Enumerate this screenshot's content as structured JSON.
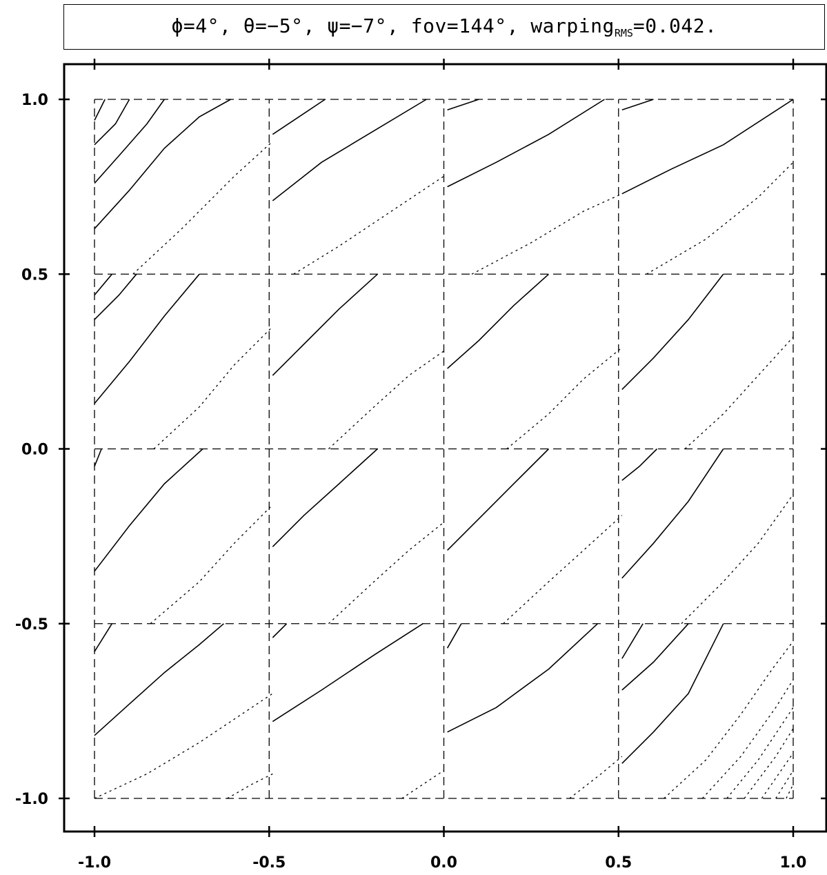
{
  "title": {
    "phi": "ϕ=4°,",
    "theta": "θ=−5°,",
    "psi": "ψ=−7°,",
    "fov": "fov=144°,",
    "warping_main": "warping",
    "warping_sub": "RMS",
    "warping_value": "=0.042."
  },
  "chart_data": {
    "type": "line",
    "title": "ϕ=4°, θ=−5°, ψ=−7°, fov=144°, warping_RMS=0.042.",
    "xlabel": "",
    "ylabel": "",
    "xlim": [
      -1.0,
      1.0
    ],
    "ylim": [
      -1.0,
      1.0
    ],
    "x_ticks": [
      "-1.0",
      "-0.5",
      "0.0",
      "0.5",
      "1.0"
    ],
    "y_ticks": [
      "1.0",
      "0.5",
      "0.0",
      "-0.5",
      "-1.0"
    ],
    "grid": true,
    "grid_style": "dashed",
    "grid_lines": [
      -1.0,
      -0.5,
      0.0,
      0.5,
      1.0
    ],
    "series": [
      {
        "style": "solid",
        "segments": [
          [
            [
              -1.0,
              0.94
            ],
            [
              -0.97,
              1.0
            ]
          ],
          [
            [
              -1.0,
              0.87
            ],
            [
              -0.94,
              0.93
            ],
            [
              -0.9,
              1.0
            ]
          ],
          [
            [
              -1.0,
              0.76
            ],
            [
              -0.92,
              0.85
            ],
            [
              -0.85,
              0.93
            ],
            [
              -0.8,
              1.0
            ]
          ],
          [
            [
              -1.0,
              0.63
            ],
            [
              -0.9,
              0.74
            ],
            [
              -0.8,
              0.86
            ],
            [
              -0.7,
              0.95
            ],
            [
              -0.61,
              1.0
            ]
          ],
          [
            [
              -0.49,
              0.9
            ],
            [
              -0.4,
              0.96
            ],
            [
              -0.34,
              1.0
            ]
          ],
          [
            [
              -0.49,
              0.71
            ],
            [
              -0.35,
              0.82
            ],
            [
              -0.2,
              0.91
            ],
            [
              -0.05,
              1.0
            ]
          ],
          [
            [
              0.01,
              0.97
            ],
            [
              0.1,
              1.0
            ]
          ],
          [
            [
              0.01,
              0.75
            ],
            [
              0.15,
              0.82
            ],
            [
              0.3,
              0.9
            ],
            [
              0.46,
              1.0
            ]
          ],
          [
            [
              0.51,
              0.97
            ],
            [
              0.6,
              1.0
            ]
          ],
          [
            [
              0.51,
              0.73
            ],
            [
              0.65,
              0.8
            ],
            [
              0.8,
              0.87
            ],
            [
              1.0,
              1.0
            ]
          ],
          [
            [
              -1.0,
              0.44
            ],
            [
              -0.95,
              0.5
            ]
          ],
          [
            [
              -1.0,
              0.37
            ],
            [
              -0.93,
              0.44
            ],
            [
              -0.88,
              0.5
            ]
          ],
          [
            [
              -1.0,
              0.13
            ],
            [
              -0.9,
              0.25
            ],
            [
              -0.8,
              0.38
            ],
            [
              -0.7,
              0.5
            ]
          ],
          [
            [
              -0.49,
              0.21
            ],
            [
              -0.4,
              0.3
            ],
            [
              -0.3,
              0.4
            ],
            [
              -0.19,
              0.5
            ]
          ],
          [
            [
              0.01,
              0.23
            ],
            [
              0.1,
              0.31
            ],
            [
              0.2,
              0.41
            ],
            [
              0.3,
              0.5
            ]
          ],
          [
            [
              0.51,
              0.17
            ],
            [
              0.6,
              0.26
            ],
            [
              0.7,
              0.37
            ],
            [
              0.8,
              0.5
            ]
          ],
          [
            [
              -1.0,
              -0.05
            ],
            [
              -0.98,
              0.0
            ]
          ],
          [
            [
              -1.0,
              -0.35
            ],
            [
              -0.9,
              -0.22
            ],
            [
              -0.8,
              -0.1
            ],
            [
              -0.69,
              0.0
            ]
          ],
          [
            [
              -0.49,
              -0.28
            ],
            [
              -0.4,
              -0.19
            ],
            [
              -0.3,
              -0.1
            ],
            [
              -0.19,
              0.0
            ]
          ],
          [
            [
              0.01,
              -0.29
            ],
            [
              0.1,
              -0.2
            ],
            [
              0.2,
              -0.1
            ],
            [
              0.3,
              0.0
            ]
          ],
          [
            [
              0.51,
              -0.09
            ],
            [
              0.56,
              -0.05
            ],
            [
              0.61,
              0.0
            ]
          ],
          [
            [
              0.51,
              -0.37
            ],
            [
              0.6,
              -0.27
            ],
            [
              0.7,
              -0.15
            ],
            [
              0.8,
              0.0
            ]
          ],
          [
            [
              -1.0,
              -0.58
            ],
            [
              -0.95,
              -0.5
            ]
          ],
          [
            [
              -1.0,
              -0.82
            ],
            [
              -0.9,
              -0.73
            ],
            [
              -0.8,
              -0.64
            ],
            [
              -0.7,
              -0.56
            ],
            [
              -0.63,
              -0.5
            ]
          ],
          [
            [
              -0.49,
              -0.54
            ],
            [
              -0.45,
              -0.5
            ]
          ],
          [
            [
              -0.49,
              -0.78
            ],
            [
              -0.35,
              -0.69
            ],
            [
              -0.2,
              -0.59
            ],
            [
              -0.06,
              -0.5
            ]
          ],
          [
            [
              0.01,
              -0.57
            ],
            [
              0.05,
              -0.5
            ]
          ],
          [
            [
              0.01,
              -0.81
            ],
            [
              0.15,
              -0.74
            ],
            [
              0.3,
              -0.63
            ],
            [
              0.44,
              -0.5
            ]
          ],
          [
            [
              0.51,
              -0.6
            ],
            [
              0.57,
              -0.5
            ]
          ],
          [
            [
              0.51,
              -0.69
            ],
            [
              0.6,
              -0.61
            ],
            [
              0.7,
              -0.5
            ]
          ],
          [
            [
              0.51,
              -0.9
            ],
            [
              0.6,
              -0.81
            ],
            [
              0.7,
              -0.7
            ],
            [
              0.8,
              -0.5
            ]
          ]
        ]
      },
      {
        "style": "dotted",
        "segments": [
          [
            [
              -0.89,
              0.5
            ],
            [
              -0.75,
              0.63
            ],
            [
              -0.6,
              0.78
            ],
            [
              -0.49,
              0.88
            ]
          ],
          [
            [
              -0.43,
              0.5
            ],
            [
              -0.3,
              0.58
            ],
            [
              -0.15,
              0.68
            ],
            [
              0.0,
              0.78
            ]
          ],
          [
            [
              0.08,
              0.5
            ],
            [
              0.25,
              0.59
            ],
            [
              0.4,
              0.68
            ],
            [
              0.51,
              0.73
            ]
          ],
          [
            [
              0.58,
              0.5
            ],
            [
              0.75,
              0.6
            ],
            [
              0.9,
              0.72
            ],
            [
              1.0,
              0.82
            ]
          ],
          [
            [
              -0.83,
              0.0
            ],
            [
              -0.7,
              0.12
            ],
            [
              -0.6,
              0.24
            ],
            [
              -0.49,
              0.35
            ]
          ],
          [
            [
              -0.33,
              0.0
            ],
            [
              -0.2,
              0.12
            ],
            [
              -0.1,
              0.21
            ],
            [
              0.0,
              0.28
            ]
          ],
          [
            [
              0.18,
              0.0
            ],
            [
              0.3,
              0.1
            ],
            [
              0.4,
              0.2
            ],
            [
              0.51,
              0.29
            ]
          ],
          [
            [
              0.69,
              0.0
            ],
            [
              0.8,
              0.1
            ],
            [
              0.9,
              0.21
            ],
            [
              1.0,
              0.32
            ]
          ],
          [
            [
              -0.84,
              -0.5
            ],
            [
              -0.7,
              -0.38
            ],
            [
              -0.6,
              -0.27
            ],
            [
              -0.49,
              -0.16
            ]
          ],
          [
            [
              -0.33,
              -0.5
            ],
            [
              -0.2,
              -0.38
            ],
            [
              -0.1,
              -0.29
            ],
            [
              0.0,
              -0.21
            ]
          ],
          [
            [
              0.17,
              -0.5
            ],
            [
              0.3,
              -0.38
            ],
            [
              0.4,
              -0.29
            ],
            [
              0.51,
              -0.19
            ]
          ],
          [
            [
              0.68,
              -0.5
            ],
            [
              0.8,
              -0.38
            ],
            [
              0.9,
              -0.27
            ],
            [
              1.0,
              -0.13
            ]
          ],
          [
            [
              -1.0,
              -1.0
            ],
            [
              -0.85,
              -0.93
            ],
            [
              -0.7,
              -0.84
            ],
            [
              -0.49,
              -0.7
            ]
          ],
          [
            [
              -0.62,
              -1.0
            ],
            [
              -0.55,
              -0.96
            ],
            [
              -0.49,
              -0.93
            ]
          ],
          [
            [
              -0.12,
              -1.0
            ],
            [
              0.0,
              -0.92
            ]
          ],
          [
            [
              0.36,
              -1.0
            ],
            [
              0.45,
              -0.93
            ],
            [
              0.51,
              -0.88
            ]
          ],
          [
            [
              0.63,
              -1.0
            ],
            [
              0.75,
              -0.89
            ],
            [
              0.85,
              -0.76
            ],
            [
              0.94,
              -0.63
            ],
            [
              1.0,
              -0.55
            ]
          ],
          [
            [
              0.74,
              -1.0
            ],
            [
              0.85,
              -0.88
            ],
            [
              0.95,
              -0.74
            ],
            [
              1.0,
              -0.66
            ]
          ],
          [
            [
              0.81,
              -1.0
            ],
            [
              0.9,
              -0.89
            ],
            [
              1.0,
              -0.74
            ]
          ],
          [
            [
              0.86,
              -1.0
            ],
            [
              0.95,
              -0.88
            ],
            [
              1.0,
              -0.8
            ]
          ],
          [
            [
              0.91,
              -1.0
            ],
            [
              1.0,
              -0.87
            ]
          ],
          [
            [
              0.95,
              -1.0
            ],
            [
              1.0,
              -0.92
            ]
          ],
          [
            [
              0.98,
              -1.0
            ],
            [
              1.0,
              -0.96
            ]
          ]
        ]
      }
    ]
  }
}
